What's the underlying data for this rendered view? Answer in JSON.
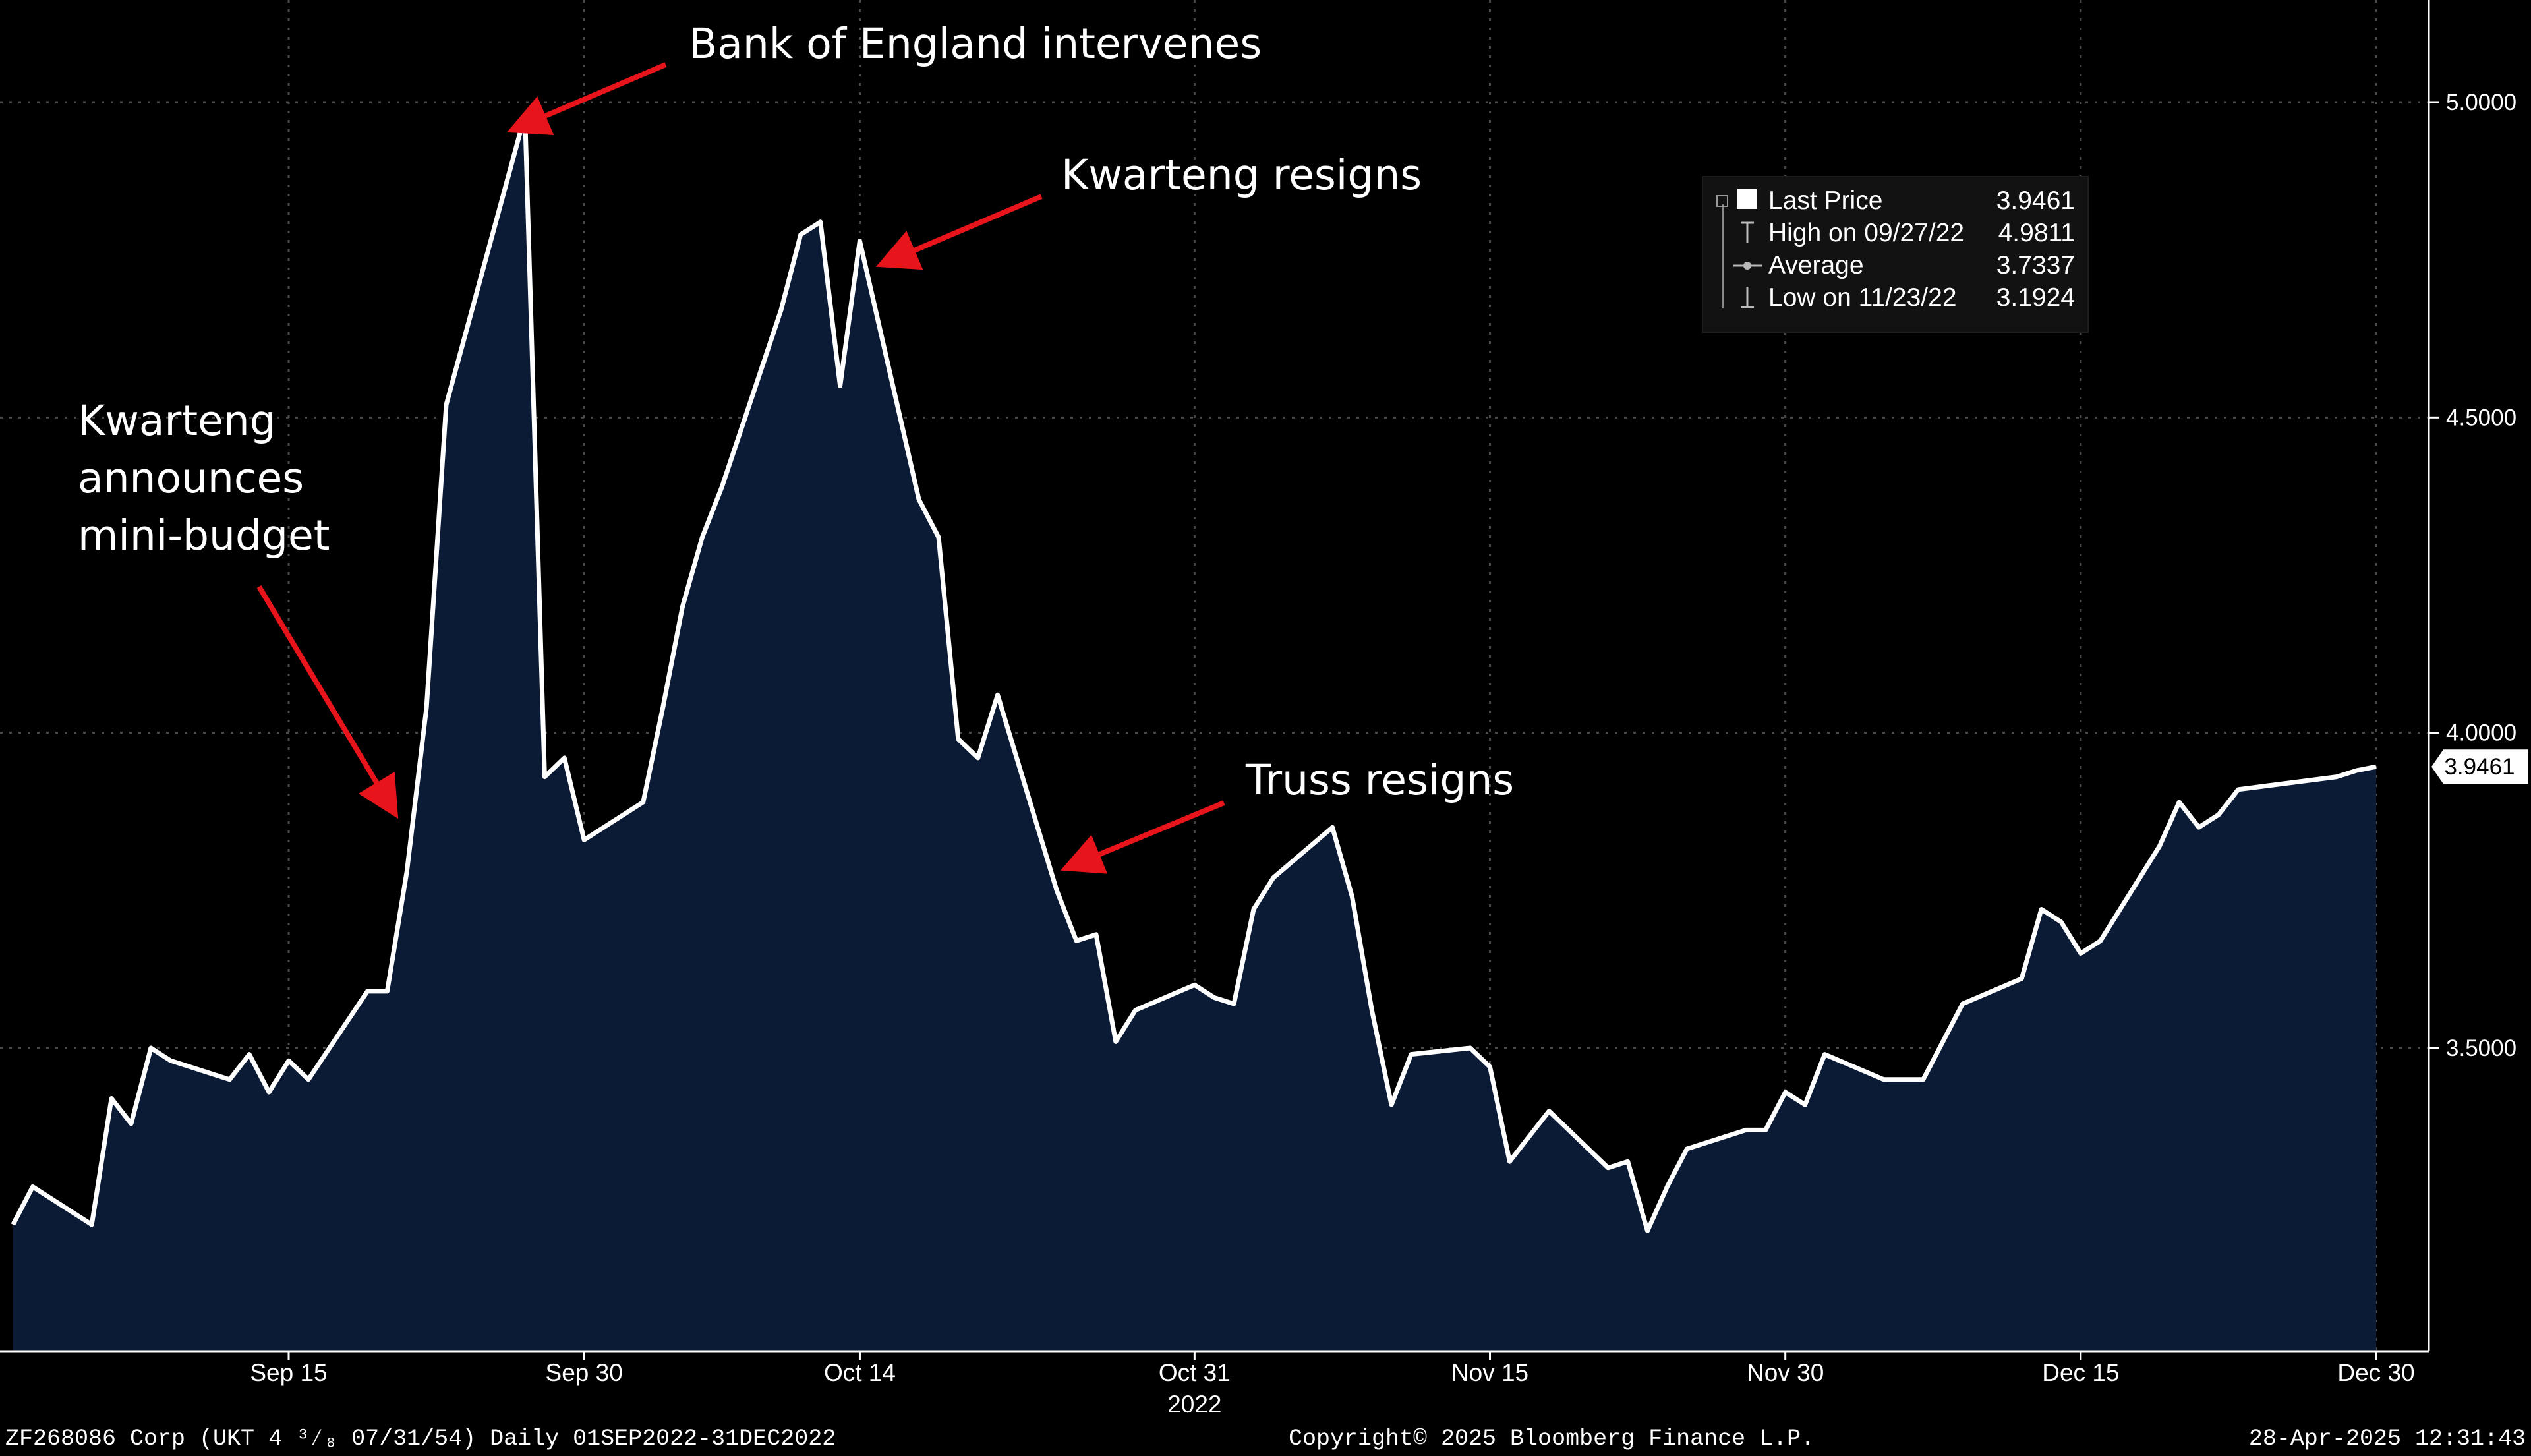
{
  "chart_data": {
    "type": "area",
    "title": "",
    "xlabel": "",
    "ylabel": "",
    "x_start": "2022-09-01",
    "x_end": "2022-12-31",
    "ylim": [
      3.0,
      5.15
    ],
    "y_ticks": [
      "5.0000",
      "4.5000",
      "4.0000",
      "3.5000"
    ],
    "x_ticks": [
      {
        "date": "2022-09-15",
        "label": "Sep 15"
      },
      {
        "date": "2022-09-30",
        "label": "Sep 30"
      },
      {
        "date": "2022-10-14",
        "label": "Oct 14"
      },
      {
        "date": "2022-10-31",
        "label": "Oct 31"
      },
      {
        "date": "2022-11-15",
        "label": "Nov 15"
      },
      {
        "date": "2022-11-30",
        "label": "Nov 30"
      },
      {
        "date": "2022-12-15",
        "label": "Dec 15"
      },
      {
        "date": "2022-12-30",
        "label": "Dec 30"
      }
    ],
    "year_label": "2022",
    "grid": true,
    "colors": {
      "background": "#000000",
      "line": "#ffffff",
      "fill": "#0b1b36",
      "grid": "#4a4a4a",
      "arrow": "#e8141b",
      "legend_bg": "#121212"
    },
    "series": [
      {
        "name": "Last Price",
        "points": [
          [
            "2022-09-01",
            3.22
          ],
          [
            "2022-09-02",
            3.28
          ],
          [
            "2022-09-05",
            3.22
          ],
          [
            "2022-09-06",
            3.42
          ],
          [
            "2022-09-07",
            3.38
          ],
          [
            "2022-09-08",
            3.5
          ],
          [
            "2022-09-09",
            3.48
          ],
          [
            "2022-09-12",
            3.45
          ],
          [
            "2022-09-13",
            3.49
          ],
          [
            "2022-09-14",
            3.43
          ],
          [
            "2022-09-15",
            3.48
          ],
          [
            "2022-09-16",
            3.45
          ],
          [
            "2022-09-19",
            3.59
          ],
          [
            "2022-09-20",
            3.59
          ],
          [
            "2022-09-21",
            3.78
          ],
          [
            "2022-09-22",
            4.04
          ],
          [
            "2022-09-23",
            4.52
          ],
          [
            "2022-09-27",
            4.98
          ],
          [
            "2022-09-28",
            3.93
          ],
          [
            "2022-09-29",
            3.96
          ],
          [
            "2022-09-30",
            3.83
          ],
          [
            "2022-10-03",
            3.89
          ],
          [
            "2022-10-04",
            4.04
          ],
          [
            "2022-10-05",
            4.2
          ],
          [
            "2022-10-06",
            4.31
          ],
          [
            "2022-10-07",
            4.39
          ],
          [
            "2022-10-10",
            4.67
          ],
          [
            "2022-10-11",
            4.79
          ],
          [
            "2022-10-12",
            4.81
          ],
          [
            "2022-10-13",
            4.55
          ],
          [
            "2022-10-14",
            4.78
          ],
          [
            "2022-10-17",
            4.37
          ],
          [
            "2022-10-18",
            4.31
          ],
          [
            "2022-10-19",
            3.99
          ],
          [
            "2022-10-20",
            3.96
          ],
          [
            "2022-10-21",
            4.06
          ],
          [
            "2022-10-24",
            3.75
          ],
          [
            "2022-10-25",
            3.67
          ],
          [
            "2022-10-26",
            3.68
          ],
          [
            "2022-10-27",
            3.51
          ],
          [
            "2022-10-28",
            3.56
          ],
          [
            "2022-10-31",
            3.6
          ],
          [
            "2022-11-01",
            3.58
          ],
          [
            "2022-11-02",
            3.57
          ],
          [
            "2022-11-03",
            3.72
          ],
          [
            "2022-11-04",
            3.77
          ],
          [
            "2022-11-07",
            3.85
          ],
          [
            "2022-11-08",
            3.74
          ],
          [
            "2022-11-09",
            3.56
          ],
          [
            "2022-11-10",
            3.41
          ],
          [
            "2022-11-11",
            3.49
          ],
          [
            "2022-11-14",
            3.5
          ],
          [
            "2022-11-15",
            3.47
          ],
          [
            "2022-11-16",
            3.32
          ],
          [
            "2022-11-17",
            3.36
          ],
          [
            "2022-11-18",
            3.4
          ],
          [
            "2022-11-21",
            3.31
          ],
          [
            "2022-11-22",
            3.32
          ],
          [
            "2022-11-23",
            3.21
          ],
          [
            "2022-11-24",
            3.28
          ],
          [
            "2022-11-25",
            3.34
          ],
          [
            "2022-11-28",
            3.37
          ],
          [
            "2022-11-29",
            3.37
          ],
          [
            "2022-11-30",
            3.43
          ],
          [
            "2022-12-01",
            3.41
          ],
          [
            "2022-12-02",
            3.49
          ],
          [
            "2022-12-05",
            3.45
          ],
          [
            "2022-12-06",
            3.45
          ],
          [
            "2022-12-07",
            3.45
          ],
          [
            "2022-12-08",
            3.51
          ],
          [
            "2022-12-09",
            3.57
          ],
          [
            "2022-12-12",
            3.61
          ],
          [
            "2022-12-13",
            3.72
          ],
          [
            "2022-12-14",
            3.7
          ],
          [
            "2022-12-15",
            3.65
          ],
          [
            "2022-12-16",
            3.67
          ],
          [
            "2022-12-19",
            3.82
          ],
          [
            "2022-12-20",
            3.89
          ],
          [
            "2022-12-21",
            3.85
          ],
          [
            "2022-12-22",
            3.87
          ],
          [
            "2022-12-23",
            3.91
          ],
          [
            "2022-12-28",
            3.93
          ],
          [
            "2022-12-29",
            3.94
          ],
          [
            "2022-12-30",
            3.9461
          ]
        ]
      }
    ],
    "last_value_label": "3.9461",
    "legend": {
      "placement": "top-right",
      "rows": [
        {
          "marker": "square",
          "label": "Last Price",
          "value": "3.9461"
        },
        {
          "marker": "high",
          "label": "High on 09/27/22",
          "value": "4.9811"
        },
        {
          "marker": "avg",
          "label": "Average",
          "value": "3.7337"
        },
        {
          "marker": "low",
          "label": "Low on 11/23/22",
          "value": "3.1924"
        }
      ]
    },
    "annotations": [
      {
        "text_lines": [
          "Bank of England intervenes"
        ],
        "target_date": "2022-09-27"
      },
      {
        "text_lines": [
          "Kwarteng resigns"
        ],
        "target_date": "2022-10-14"
      },
      {
        "text_lines": [
          "Kwarteng",
          "announces",
          "mini-budget"
        ],
        "target_date": "2022-09-23"
      },
      {
        "text_lines": [
          "Truss resigns"
        ],
        "target_date": "2022-10-20"
      }
    ]
  },
  "footer": {
    "left": "ZF268086 Corp (UKT 4 ³⁄₈ 07/31/54)  Daily 01SEP2022-31DEC2022",
    "center": "Copyright© 2025 Bloomberg Finance L.P.",
    "right": "28-Apr-2025 12:31:43"
  }
}
